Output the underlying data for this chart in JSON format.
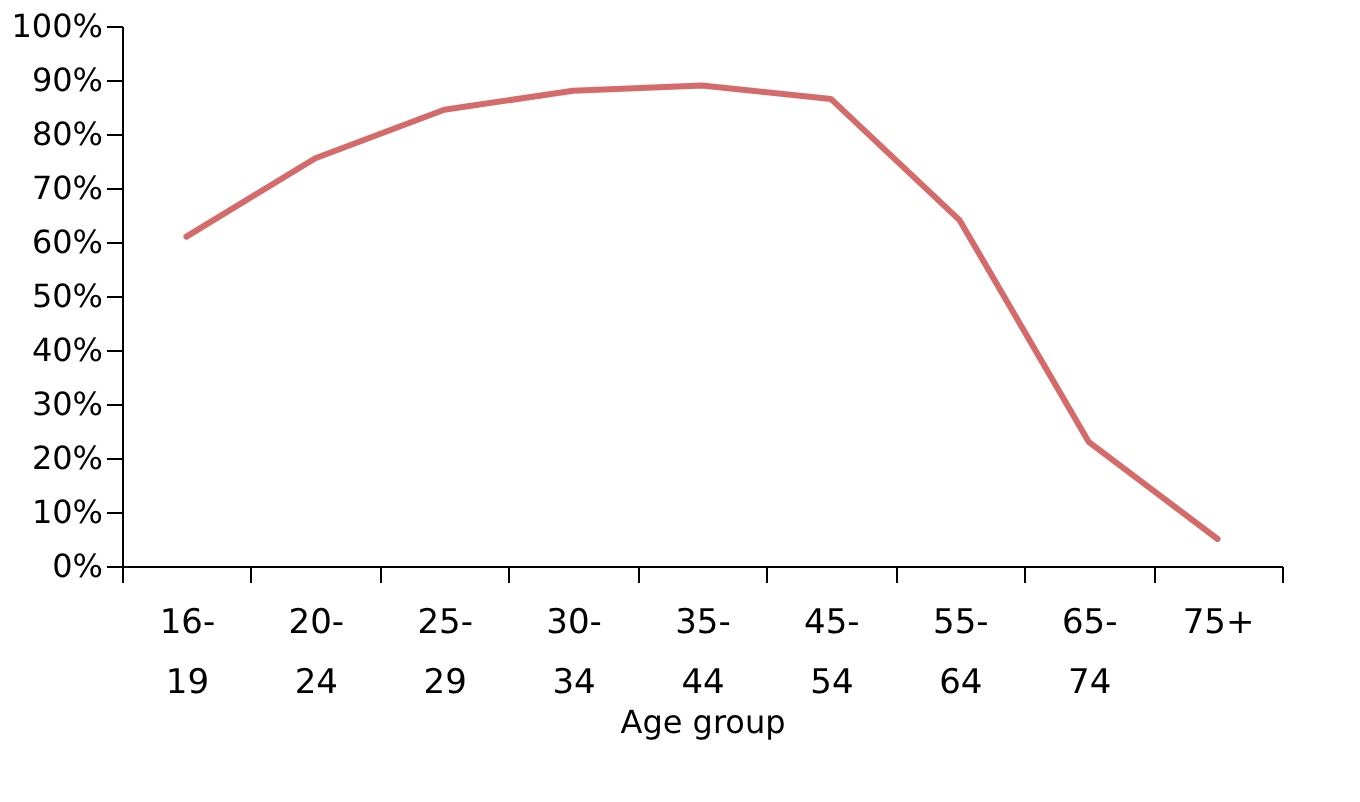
{
  "chart_data": {
    "type": "line",
    "xlabel": "Age group",
    "categories": [
      "16-19",
      "20-24",
      "25-29",
      "30-34",
      "35-44",
      "45-54",
      "55-64",
      "65-74",
      "75+"
    ],
    "series": [
      {
        "color": "#d46a6a",
        "values": [
          61,
          75.5,
          84.5,
          88,
          89,
          86.5,
          64,
          23,
          5
        ]
      }
    ],
    "ylim": [
      0,
      100
    ],
    "yticks": [
      {
        "value": 0,
        "label": "0%"
      },
      {
        "value": 10,
        "label": "10%"
      },
      {
        "value": 20,
        "label": "20%"
      },
      {
        "value": 30,
        "label": "30%"
      },
      {
        "value": 40,
        "label": "40%"
      },
      {
        "value": 50,
        "label": "50%"
      },
      {
        "value": 60,
        "label": "60%"
      },
      {
        "value": 70,
        "label": "70%"
      },
      {
        "value": 80,
        "label": "80%"
      },
      {
        "value": 90,
        "label": "90%"
      },
      {
        "value": 100,
        "label": "100%"
      }
    ],
    "grid": false,
    "legend": false,
    "line_style": "solid",
    "marker": "none"
  }
}
